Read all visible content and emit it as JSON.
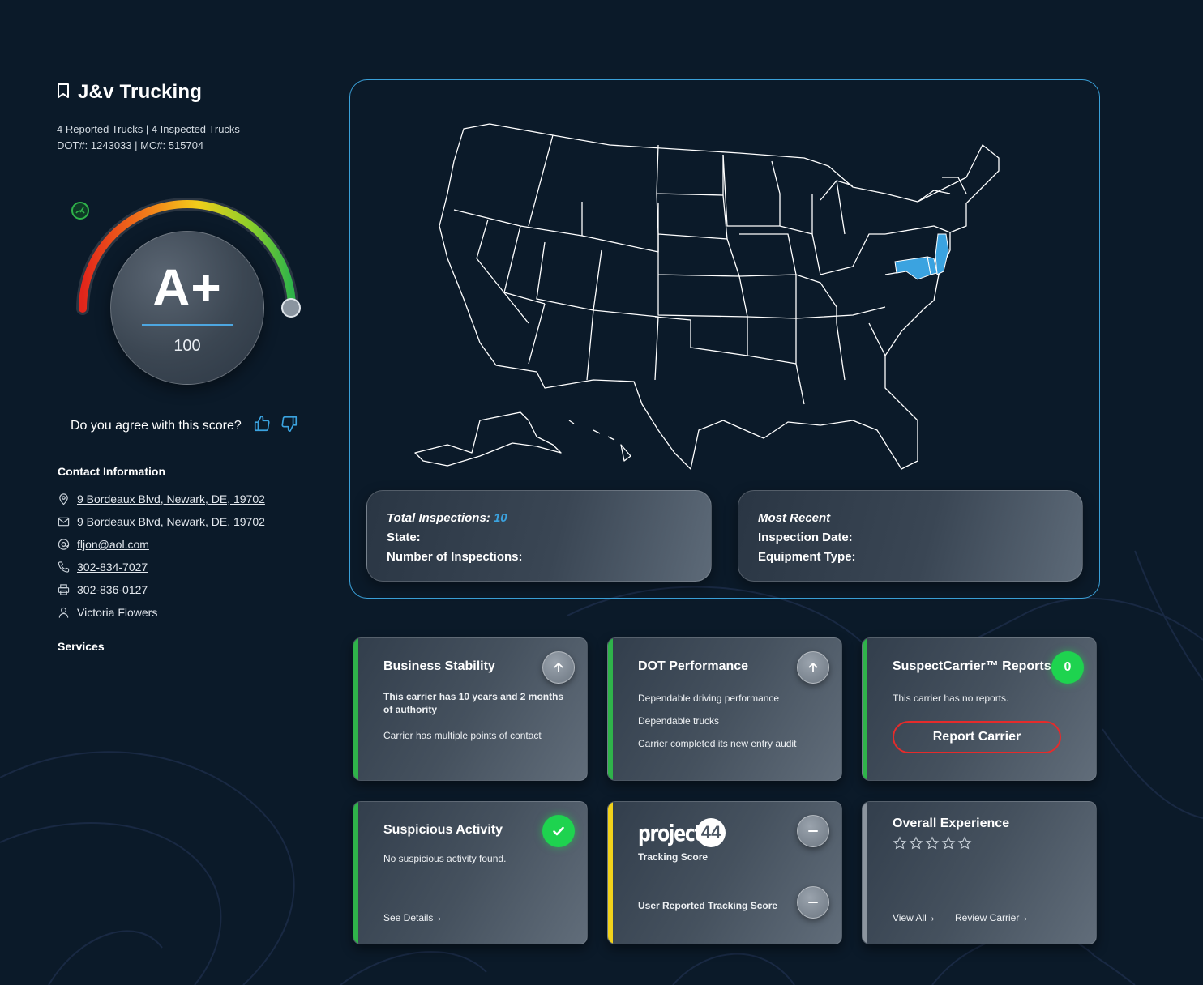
{
  "company": {
    "name": "J&v Trucking",
    "trucks_line": "4 Reported Trucks | 4 Inspected Trucks",
    "ids_line": "DOT#: 1243033 | MC#: 515704"
  },
  "score": {
    "grade": "A+",
    "value": "100",
    "gauge_fraction": 1.0,
    "agree_question": "Do you agree with this score?"
  },
  "contact": {
    "heading": "Contact Information",
    "items": [
      {
        "icon": "location-pin-icon",
        "text": "9 Bordeaux Blvd, Newark, DE, 19702",
        "link": true
      },
      {
        "icon": "mail-icon",
        "text": "9 Bordeaux Blvd, Newark, DE, 19702",
        "link": true
      },
      {
        "icon": "at-sign-icon",
        "text": "fljon@aol.com",
        "link": true
      },
      {
        "icon": "phone-icon",
        "text": "302-834-7027",
        "link": true
      },
      {
        "icon": "fax-icon",
        "text": "302-836-0127",
        "link": true
      },
      {
        "icon": "person-icon",
        "text": "Victoria Flowers",
        "link": false
      }
    ]
  },
  "services_label": "Services",
  "map": {
    "highlighted_states": [
      "NJ",
      "DE",
      "MD"
    ],
    "highlight_color": "#3ba3e0"
  },
  "inspections": {
    "total_label": "Total Inspections:",
    "total_value": "10",
    "state_label": "State:",
    "number_label": "Number of Inspections:",
    "recent_label": "Most Recent",
    "date_label": "Inspection Date:",
    "equipment_label": "Equipment Type:"
  },
  "cards": {
    "business": {
      "title": "Business Stability",
      "line1": "This carrier has 10 years and 2 months of authority",
      "line2": "Carrier has multiple points of contact",
      "bar_color": "#2fb34a"
    },
    "dot": {
      "title": "DOT Performance",
      "line1": "Dependable driving performance",
      "line2": "Dependable trucks",
      "line3": "Carrier completed its new entry audit",
      "bar_color": "#2fb34a"
    },
    "suspect": {
      "title": "SuspectCarrier™ Reports",
      "count": "0",
      "text": "This carrier has no reports.",
      "button": "Report Carrier",
      "bar_color": "#2fb34a"
    },
    "suspicious": {
      "title": "Suspicious Activity",
      "text": "No suspicious activity found.",
      "link": "See Details",
      "bar_color": "#2fb34a"
    },
    "tracking": {
      "logo": "project44",
      "label": "Tracking Score",
      "user_label": "User Reported Tracking Score",
      "bar_color": "#f2d21b"
    },
    "experience": {
      "title": "Overall Experience",
      "rating": 0,
      "max_rating": 5,
      "view_all": "View All",
      "review": "Review Carrier",
      "bar_color": "#8c959f"
    }
  }
}
